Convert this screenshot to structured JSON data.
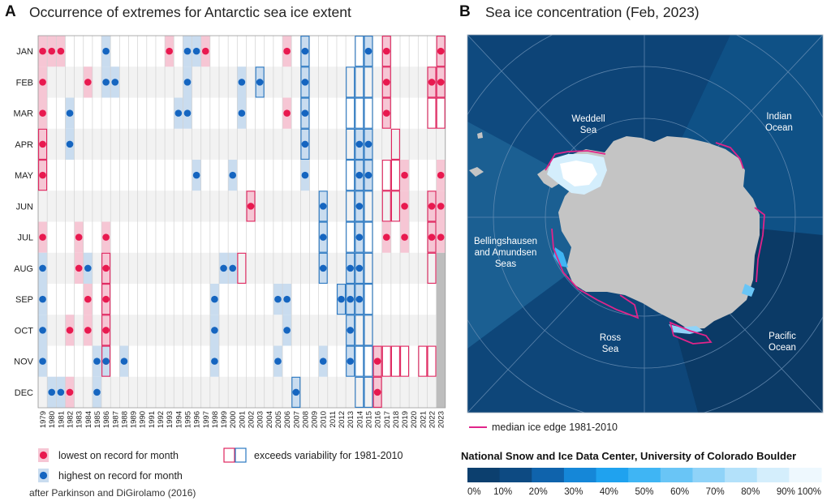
{
  "panelA": {
    "letter": "A",
    "title": "Occurrence of extremes for Antarctic sea ice extent",
    "months": [
      "JAN",
      "FEB",
      "MAR",
      "APR",
      "MAY",
      "JUN",
      "JUL",
      "AUG",
      "SEP",
      "OCT",
      "NOV",
      "DEC"
    ],
    "legend": {
      "lowest": "lowest on record for month",
      "highest": "highest on record for month",
      "exceeds": "exceeds variability for 1981-2010"
    },
    "note": "after Parkinson and DiGirolamo (2016)",
    "colors": {
      "low": "#e8194f",
      "low_fill": "#f6c6d4",
      "high": "#1565c0",
      "high_fill": "#c9dcef",
      "exceed_low": "#e0245e",
      "exceed_high": "#2a78c2"
    }
  },
  "chart_data": {
    "type": "heatmap",
    "title": "Occurrence of extremes for Antarctic sea ice extent",
    "years": [
      1979,
      1980,
      1981,
      1982,
      1983,
      1984,
      1985,
      1986,
      1987,
      1988,
      1989,
      1990,
      1991,
      1992,
      1993,
      1994,
      1995,
      1996,
      1997,
      1998,
      1999,
      2000,
      2001,
      2002,
      2003,
      2004,
      2005,
      2006,
      2007,
      2008,
      2009,
      2010,
      2011,
      2012,
      2013,
      2014,
      2015,
      2016,
      2017,
      2018,
      2019,
      2020,
      2021,
      2022,
      2023
    ],
    "lowest": [
      {
        "m": "JAN",
        "y": [
          1979,
          1980,
          1981,
          1993,
          1997,
          2006,
          2017,
          2023
        ]
      },
      {
        "m": "FEB",
        "y": [
          1979,
          1984,
          2017,
          2022,
          2023
        ]
      },
      {
        "m": "MAR",
        "y": [
          1979,
          2006,
          2017
        ]
      },
      {
        "m": "APR",
        "y": [
          1979
        ]
      },
      {
        "m": "MAY",
        "y": [
          1979,
          2019,
          2023
        ]
      },
      {
        "m": "JUN",
        "y": [
          2002,
          2019,
          2022,
          2023
        ]
      },
      {
        "m": "JUL",
        "y": [
          1979,
          1983,
          1986,
          2017,
          2019,
          2022,
          2023
        ]
      },
      {
        "m": "AUG",
        "y": [
          1983,
          1986
        ]
      },
      {
        "m": "SEP",
        "y": [
          1984,
          1986
        ]
      },
      {
        "m": "OCT",
        "y": [
          1982,
          1984,
          1986
        ]
      },
      {
        "m": "NOV",
        "y": [
          1986,
          2016
        ]
      },
      {
        "m": "DEC",
        "y": [
          1982,
          2016
        ]
      }
    ],
    "highest": [
      {
        "m": "JAN",
        "y": [
          1986,
          1995,
          1996,
          2008,
          2015
        ]
      },
      {
        "m": "FEB",
        "y": [
          1986,
          1987,
          1995,
          2001,
          2003,
          2008
        ]
      },
      {
        "m": "MAR",
        "y": [
          1982,
          1994,
          1995,
          2001,
          2008
        ]
      },
      {
        "m": "APR",
        "y": [
          1982,
          2008,
          2014,
          2015
        ]
      },
      {
        "m": "MAY",
        "y": [
          1996,
          2000,
          2008,
          2014,
          2015
        ]
      },
      {
        "m": "JUN",
        "y": [
          2010,
          2014
        ]
      },
      {
        "m": "JUL",
        "y": [
          2010,
          2014
        ]
      },
      {
        "m": "AUG",
        "y": [
          1979,
          1984,
          1999,
          2000,
          2010,
          2013,
          2014
        ]
      },
      {
        "m": "SEP",
        "y": [
          1979,
          1998,
          2005,
          2006,
          2012,
          2013,
          2014
        ]
      },
      {
        "m": "OCT",
        "y": [
          1979,
          1998,
          2006,
          2013
        ]
      },
      {
        "m": "NOV",
        "y": [
          1979,
          1985,
          1986,
          1988,
          1998,
          2005,
          2010,
          2013
        ]
      },
      {
        "m": "DEC",
        "y": [
          1980,
          1981,
          1985,
          2007
        ]
      }
    ],
    "exceeds_low": [
      {
        "m": "JAN",
        "y": [
          2017,
          2023
        ]
      },
      {
        "m": "FEB",
        "y": [
          2017,
          2022,
          2023
        ]
      },
      {
        "m": "MAR",
        "y": [
          2017,
          2022,
          2023
        ]
      },
      {
        "m": "APR",
        "y": [
          1979,
          2018
        ]
      },
      {
        "m": "MAY",
        "y": [
          1979,
          2017,
          2018
        ]
      },
      {
        "m": "JUN",
        "y": [
          2002,
          2017,
          2018,
          2022
        ]
      },
      {
        "m": "JUL",
        "y": [
          2022
        ]
      },
      {
        "m": "AUG",
        "y": [
          1986,
          2001,
          2022
        ]
      },
      {
        "m": "SEP",
        "y": [
          1986
        ]
      },
      {
        "m": "OCT",
        "y": [
          1986
        ]
      },
      {
        "m": "NOV",
        "y": [
          1986,
          2016,
          2017,
          2018,
          2019,
          2021,
          2022
        ]
      },
      {
        "m": "DEC",
        "y": [
          2016
        ]
      }
    ],
    "exceeds_high": [
      {
        "m": "JAN",
        "y": [
          2008,
          2014,
          2015
        ]
      },
      {
        "m": "FEB",
        "y": [
          2003,
          2008,
          2013,
          2014,
          2015
        ]
      },
      {
        "m": "MAR",
        "y": [
          2008,
          2013,
          2014,
          2015
        ]
      },
      {
        "m": "APR",
        "y": [
          2008,
          2013,
          2014,
          2015
        ]
      },
      {
        "m": "MAY",
        "y": [
          2013,
          2014,
          2015
        ]
      },
      {
        "m": "JUN",
        "y": [
          2010,
          2013,
          2014,
          2015
        ]
      },
      {
        "m": "JUL",
        "y": [
          2010,
          2013,
          2014,
          2015
        ]
      },
      {
        "m": "AUG",
        "y": [
          2010,
          2013,
          2014,
          2015
        ]
      },
      {
        "m": "SEP",
        "y": [
          2012,
          2013,
          2014,
          2015
        ]
      },
      {
        "m": "OCT",
        "y": [
          2013,
          2014,
          2015
        ]
      },
      {
        "m": "NOV",
        "y": [
          2013,
          2014,
          2015
        ]
      },
      {
        "m": "DEC",
        "y": [
          2007,
          2014,
          2015
        ]
      }
    ]
  },
  "panelB": {
    "letter": "B",
    "title": "Sea ice concentration (Feb, 2023)",
    "region_labels": {
      "weddell": [
        "Weddell",
        "Sea"
      ],
      "indian": [
        "Indian",
        "Ocean"
      ],
      "bellingshausen": [
        "Bellingshausen",
        "and Amundsen",
        "Seas"
      ],
      "ross": [
        "Ross",
        "Sea"
      ],
      "pacific": [
        "Pacific",
        "Ocean"
      ]
    },
    "median_label": "median ice edge 1981-2010",
    "credit": "National Snow and Ice Data Center, University of Colorado Boulder",
    "colorbar_labels": [
      "0%",
      "10%",
      "20%",
      "30%",
      "40%",
      "50%",
      "60%",
      "70%",
      "80%",
      "90%",
      "100%"
    ],
    "colorbar_colors": [
      "#0c3f6e",
      "#0d4a82",
      "#0f63ac",
      "#1587d8",
      "#1fa2ef",
      "#3fb5f4",
      "#69c5f6",
      "#8fd3f8",
      "#b3e1fa",
      "#d4eefc",
      "#eef8fe"
    ],
    "colors": {
      "ocean_dark": "#0b3a66",
      "ocean_mid": "#0f4a7f",
      "ocean_light": "#1b5f92",
      "land": "#c4c4c4",
      "median_edge": "#e0248a"
    }
  }
}
